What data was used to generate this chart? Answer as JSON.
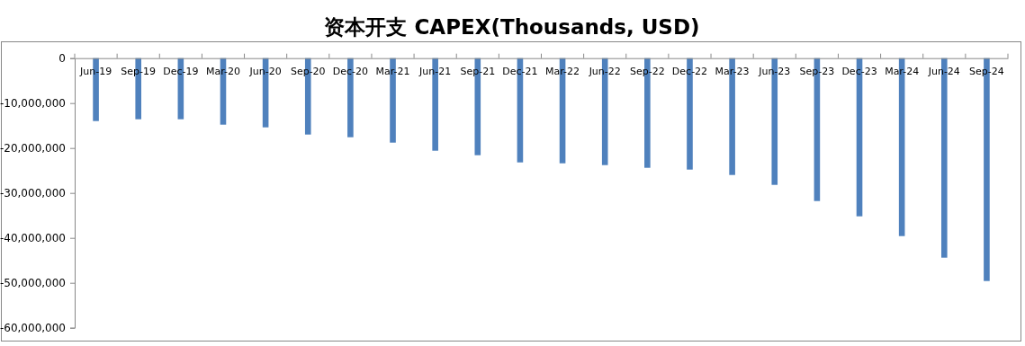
{
  "chart_data": {
    "type": "bar",
    "title": "资本开支 CAPEX(Thousands, USD)",
    "categories": [
      "Jun-19",
      "Sep-19",
      "Dec-19",
      "Mar-20",
      "Jun-20",
      "Sep-20",
      "Dec-20",
      "Mar-21",
      "Jun-21",
      "Sep-21",
      "Dec-21",
      "Mar-22",
      "Jun-22",
      "Sep-22",
      "Dec-22",
      "Mar-23",
      "Jun-23",
      "Sep-23",
      "Dec-23",
      "Mar-24",
      "Jun-24",
      "Sep-24"
    ],
    "values": [
      -14000000,
      -13600000,
      -13600000,
      -14800000,
      -15400000,
      -17000000,
      -17600000,
      -18800000,
      -20600000,
      -21600000,
      -23200000,
      -23400000,
      -23800000,
      -24400000,
      -24800000,
      -26000000,
      -28200000,
      -31800000,
      -35200000,
      -39600000,
      -44400000,
      -49600000
    ],
    "color": "#4f81bd",
    "ylim": [
      -60000000,
      0
    ],
    "yticks": [
      {
        "value": -60000000,
        "label": "-60,000,000"
      },
      {
        "value": -50000000,
        "label": "-50,000,000"
      },
      {
        "value": -40000000,
        "label": "-40,000,000"
      },
      {
        "value": -30000000,
        "label": "-30,000,000"
      },
      {
        "value": -20000000,
        "label": "-20,000,000"
      },
      {
        "value": -10000000,
        "label": "-10,000,000"
      },
      0
    ],
    "grid": false,
    "legend": false
  }
}
